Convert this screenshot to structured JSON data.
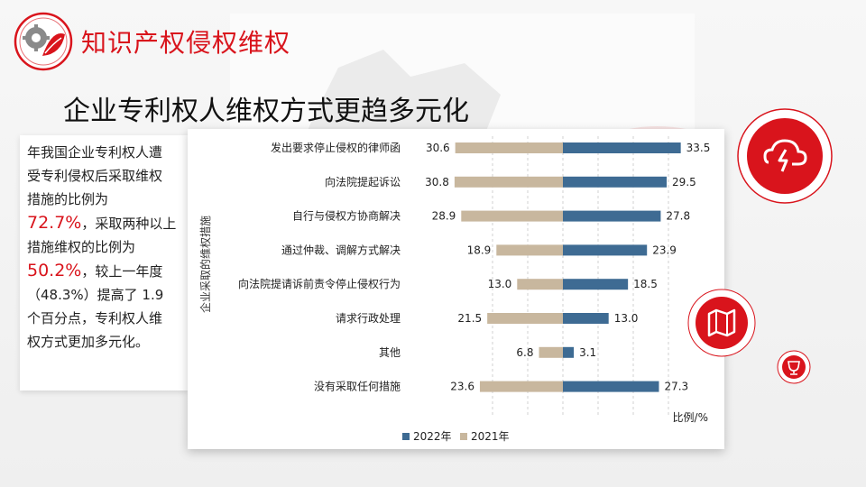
{
  "header": {
    "title": "知识产权侵权维权"
  },
  "slide": {
    "subtitle": "企业专利权人维权方式更趋多元化"
  },
  "summary": {
    "line1": "年我国企业专利权人遭",
    "line2": "受专利侵权后采取维权",
    "line3": "措施的比例为",
    "highlight1": "72.7%",
    "after1": "，采取两种以上",
    "line5": "措施维权的比例为",
    "highlight2": "50.2%",
    "after2": "，较上一年度",
    "line7": "（48.3%）提高了 1.9",
    "line8": "个百分点，专利权人维",
    "line9": "权方式更加多元化。"
  },
  "colors": {
    "accent": "#d9141c",
    "series_2022": "#3e6b93",
    "series_2021": "#c8b79e"
  },
  "icons": {
    "header": "gear-leaf-logo-icon",
    "circle1": "cloud-lightning-icon",
    "circle2": "map-icon",
    "circle3": "trophy-icon"
  },
  "chart_data": {
    "type": "bar",
    "orientation": "horizontal-diverging",
    "ylabel": "企业采取的维权措施",
    "xlabel": "比例/%",
    "categories": [
      "发出要求停止侵权的律师函",
      "向法院提起诉讼",
      "自行与侵权方协商解决",
      "通过仲裁、调解方式解决",
      "向法院提请诉前责令停止侵权行为",
      "请求行政处理",
      "其他",
      "没有采取任何措施"
    ],
    "series": [
      {
        "name": "2022年",
        "values": [
          33.5,
          29.5,
          27.8,
          23.9,
          18.5,
          13.0,
          3.1,
          27.3
        ]
      },
      {
        "name": "2021年",
        "values": [
          30.6,
          30.8,
          28.9,
          18.9,
          13.0,
          21.5,
          6.8,
          23.6
        ]
      }
    ],
    "value_labels_2022": [
      "33.5",
      "29.5",
      "27.8",
      "23.9",
      "18.5",
      "13.0",
      "3.1",
      "27.3"
    ],
    "value_labels_2021": [
      "30.6",
      "30.8",
      "28.9",
      "18.9",
      "13.0",
      "21.5",
      "6.8",
      "23.6"
    ],
    "legend_position": "bottom",
    "grid": "vertical dashed"
  }
}
